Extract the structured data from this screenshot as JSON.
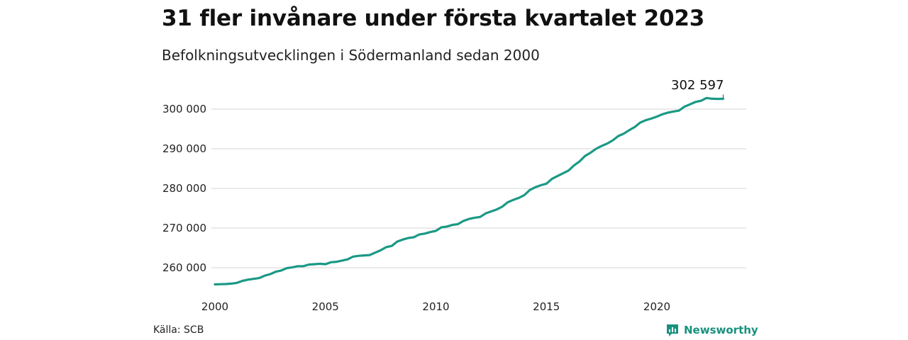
{
  "header": {
    "title": "31 fler invånare under första kvartalet 2023",
    "subtitle": "Befolkningsutvecklingen i Södermanland sedan 2000"
  },
  "chart_data": {
    "type": "line",
    "title": "31 fler invånare under första kvartalet 2023",
    "subtitle": "Befolkningsutvecklingen i Södermanland sedan 2000",
    "xlabel": "",
    "ylabel": "",
    "x_ticks": [
      {
        "value": 2000,
        "label": "2000"
      },
      {
        "value": 2005,
        "label": "2005"
      },
      {
        "value": 2010,
        "label": "2010"
      },
      {
        "value": 2015,
        "label": "2015"
      },
      {
        "value": 2020,
        "label": "2020"
      }
    ],
    "y_ticks": [
      {
        "value": 260000,
        "label": "260 000"
      },
      {
        "value": 270000,
        "label": "270 000"
      },
      {
        "value": 280000,
        "label": "280 000"
      },
      {
        "value": 290000,
        "label": "290 000"
      },
      {
        "value": 300000,
        "label": "300 000"
      }
    ],
    "xlim": [
      2000,
      2023.25
    ],
    "ylim": [
      255500,
      304000
    ],
    "grid": "horizontal",
    "color": "#1a9985",
    "end_annotation": "302 597",
    "series": [
      {
        "x": [
          2000.0,
          2000.25,
          2000.5,
          2000.75,
          2001.0,
          2001.25,
          2001.5,
          2001.75,
          2002.0,
          2002.25,
          2002.5,
          2002.75,
          2003.0,
          2003.25,
          2003.5,
          2003.75,
          2004.0,
          2004.25,
          2004.5,
          2004.75,
          2005.0,
          2005.25,
          2005.5,
          2005.75,
          2006.0,
          2006.25,
          2006.5,
          2006.75,
          2007.0,
          2007.25,
          2007.5,
          2007.75,
          2008.0,
          2008.25,
          2008.5,
          2008.75,
          2009.0,
          2009.25,
          2009.5,
          2009.75,
          2010.0,
          2010.25,
          2010.5,
          2010.75,
          2011.0,
          2011.25,
          2011.5,
          2011.75,
          2012.0,
          2012.25,
          2012.5,
          2012.75,
          2013.0,
          2013.25,
          2013.5,
          2013.75,
          2014.0,
          2014.25,
          2014.5,
          2014.75,
          2015.0,
          2015.25,
          2015.5,
          2015.75,
          2016.0,
          2016.25,
          2016.5,
          2016.75,
          2017.0,
          2017.25,
          2017.5,
          2017.75,
          2018.0,
          2018.25,
          2018.5,
          2018.75,
          2019.0,
          2019.25,
          2019.5,
          2019.75,
          2020.0,
          2020.25,
          2020.5,
          2020.75,
          2021.0,
          2021.25,
          2021.5,
          2021.75,
          2022.0,
          2022.25,
          2022.5,
          2022.75,
          2023.0
        ],
        "y": [
          255800,
          255850,
          255900,
          256000,
          256200,
          256700,
          257000,
          257200,
          257400,
          258000,
          258400,
          259000,
          259300,
          259900,
          260100,
          260400,
          260400,
          260800,
          260900,
          261000,
          260900,
          261400,
          261500,
          261800,
          262100,
          262800,
          263000,
          263100,
          263200,
          263800,
          264400,
          265200,
          265500,
          266600,
          267100,
          267500,
          267700,
          268400,
          268600,
          269000,
          269300,
          270200,
          270400,
          270800,
          271000,
          271800,
          272300,
          272600,
          272800,
          273700,
          274200,
          274700,
          275400,
          276500,
          277100,
          277600,
          278300,
          279600,
          280300,
          280800,
          281200,
          282400,
          283100,
          283800,
          284500,
          285800,
          286800,
          288200,
          289000,
          290000,
          290700,
          291300,
          292100,
          293200,
          293800,
          294700,
          295500,
          296600,
          297200,
          297600,
          298100,
          298700,
          299100,
          299400,
          299600,
          300600,
          301200,
          301800,
          302100,
          302800,
          302600,
          302566,
          302597
        ]
      }
    ]
  },
  "footer": {
    "source": "Källa: SCB",
    "brand": "Newsworthy",
    "brand_icon": "newsworthy-logo-icon"
  }
}
